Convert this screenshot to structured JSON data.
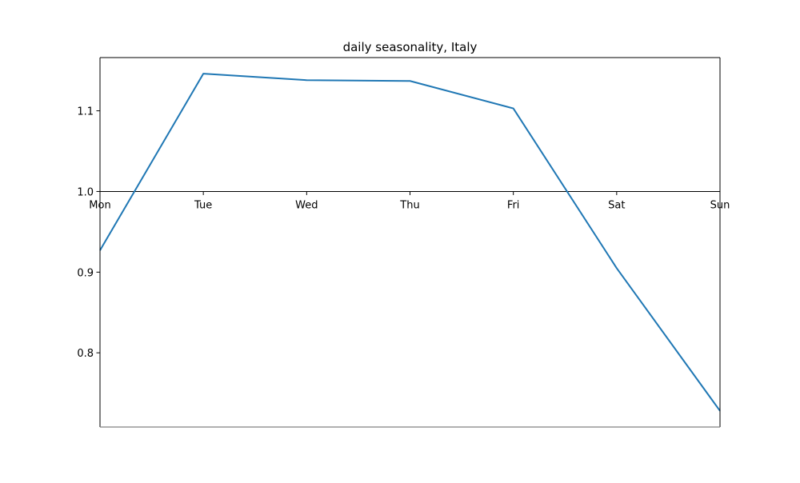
{
  "chart_data": {
    "type": "line",
    "title": "daily seasonality, Italy",
    "xlabel": "",
    "ylabel": "",
    "categories": [
      "Mon",
      "Tue",
      "Wed",
      "Thu",
      "Fri",
      "Sat",
      "Sun"
    ],
    "series": [
      {
        "values": [
          0.927,
          1.146,
          1.138,
          1.137,
          1.103,
          0.905,
          0.728
        ],
        "color": "#1f77b4"
      }
    ],
    "ylim": [
      0.708,
      1.166
    ],
    "yticks": [
      0.8,
      0.9,
      1.0,
      1.1
    ],
    "x_axis_crosses_y": 1.0,
    "grid": false,
    "legend": "none"
  }
}
